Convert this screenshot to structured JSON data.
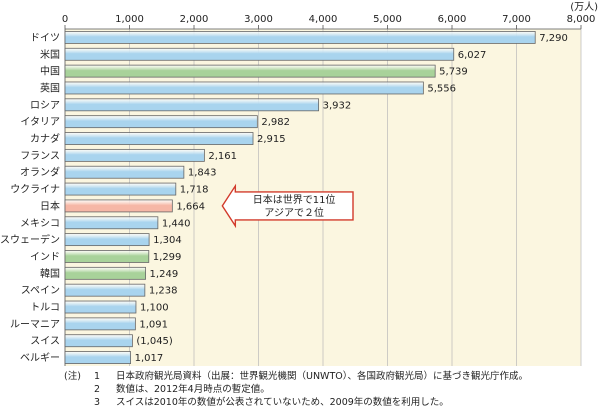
{
  "chart_data": {
    "type": "bar",
    "orientation": "horizontal",
    "unit": "(万人)",
    "xlim": [
      0,
      8000
    ],
    "ticks": [
      "0",
      "1,000",
      "2,000",
      "3,000",
      "4,000",
      "5,000",
      "6,000",
      "7,000",
      "8,000"
    ],
    "grid": true,
    "categories": [
      "ドイツ",
      "米国",
      "中国",
      "英国",
      "ロシア",
      "イタリア",
      "カナダ",
      "フランス",
      "オランダ",
      "ウクライナ",
      "日本",
      "メキシコ",
      "スウェーデン",
      "インド",
      "韓国",
      "スペイン",
      "トルコ",
      "ルーマニア",
      "スイス",
      "ベルギー"
    ],
    "values": [
      7290,
      6027,
      5739,
      5556,
      3932,
      2982,
      2915,
      2161,
      1843,
      1718,
      1664,
      1440,
      1304,
      1299,
      1249,
      1238,
      1100,
      1091,
      1045,
      1017
    ],
    "value_labels": [
      "7,290",
      "6,027",
      "5,739",
      "5,556",
      "3,932",
      "2,982",
      "2,915",
      "2,161",
      "1,843",
      "1,718",
      "1,664",
      "1,440",
      "1,304",
      "1,299",
      "1,249",
      "1,238",
      "1,100",
      "1,091",
      "(1,045)",
      "1,017"
    ],
    "bar_groups": [
      "other",
      "other",
      "asia",
      "other",
      "other",
      "other",
      "other",
      "other",
      "other",
      "other",
      "japan",
      "other",
      "other",
      "asia",
      "asia",
      "other",
      "other",
      "other",
      "other",
      "other"
    ],
    "colors": {
      "other": "#a9d4ee",
      "asia": "#a8d29a",
      "japan": "#f6b7a6",
      "plot_bg": "#fbf6e0",
      "grid": "#b9b9b9"
    },
    "annotation": {
      "lines": [
        "日本は世界で11位",
        "アジアで２位"
      ],
      "target": "日本"
    }
  },
  "notes": {
    "prefix": "(注)",
    "items": [
      {
        "num": "1",
        "text": "日本政府観光局資料（出展：世界観光機関（UNWTO）、各国政府観光局）に基づき観光庁作成。"
      },
      {
        "num": "2",
        "text": "数値は、2012年4月時点の暫定値。"
      },
      {
        "num": "3",
        "text": "スイスは2010年の数値が公表されていないため、2009年の数値を利用した。"
      }
    ]
  }
}
